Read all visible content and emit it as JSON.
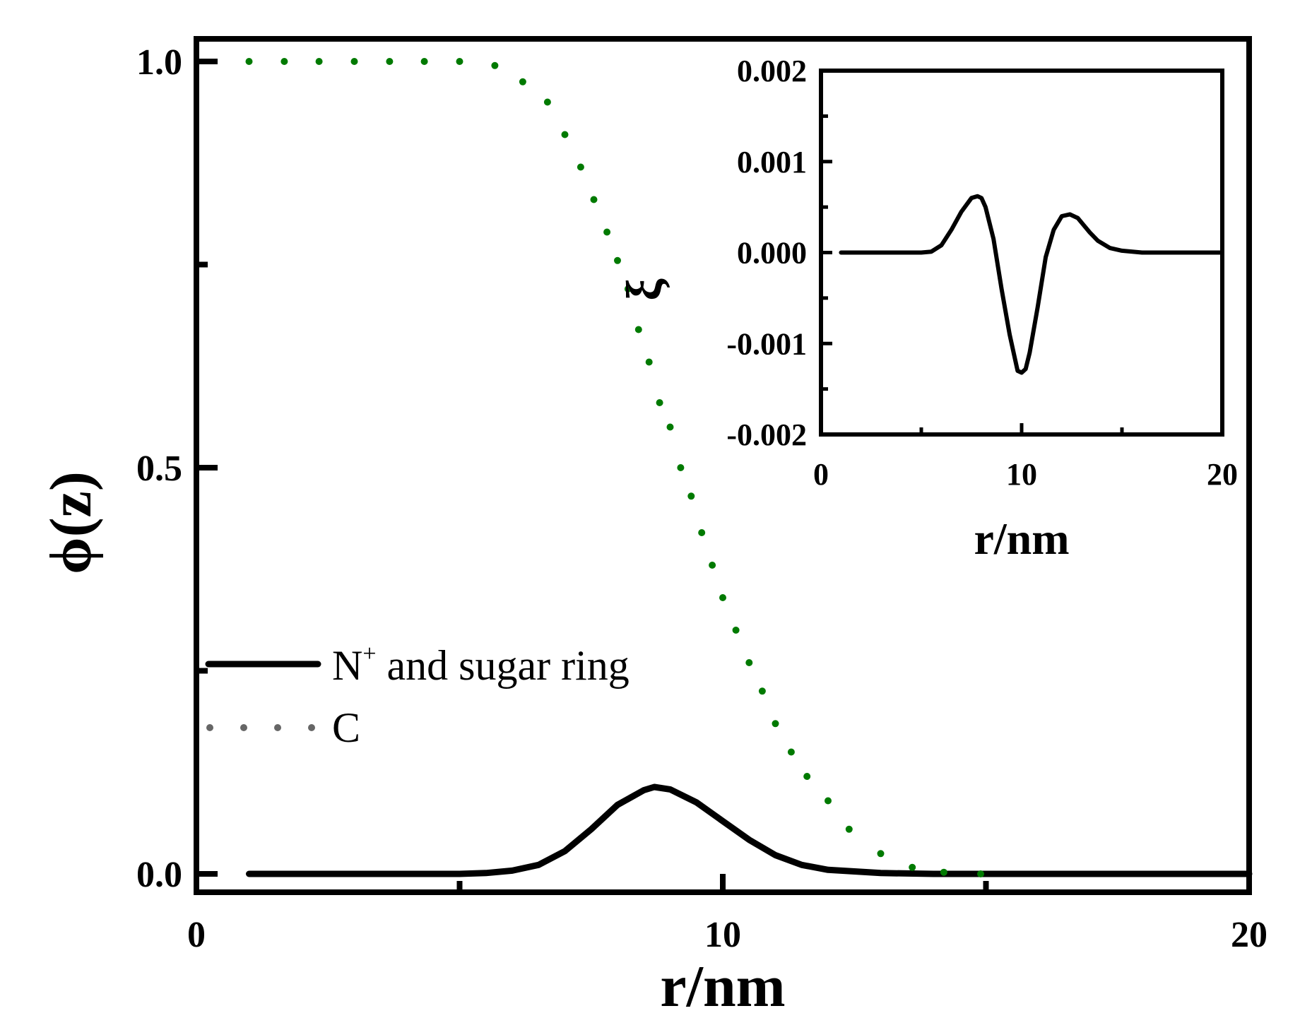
{
  "chart_data": [
    {
      "type": "line",
      "xlabel": "r/nm",
      "ylabel": "ϕ(z)",
      "xlim": [
        0,
        20
      ],
      "ylim": [
        -0.04,
        1.03
      ],
      "x_ticks": [
        0,
        10,
        20
      ],
      "x_tick_labels": [
        "0",
        "10",
        "20"
      ],
      "y_ticks": [
        0.0,
        0.5,
        1.0
      ],
      "y_tick_labels": [
        "0.0",
        "0.5",
        "1.0"
      ],
      "legend": {
        "position": "center-left",
        "entries": [
          {
            "label": "N",
            "superscript": "+",
            "rest": " and sugar ring",
            "style": "solid",
            "color": "#000000"
          },
          {
            "label": "C",
            "superscript": "",
            "rest": "",
            "style": "dotted",
            "color": "#666666"
          }
        ]
      },
      "series": [
        {
          "name": "N+ and sugar ring",
          "style": "solid",
          "color": "#000000",
          "x": [
            1,
            2,
            3,
            4,
            5,
            5.5,
            6,
            6.5,
            7,
            7.5,
            8,
            8.5,
            8.7,
            9,
            9.5,
            10,
            10.5,
            11,
            11.5,
            12,
            13,
            14,
            15,
            16,
            17,
            18,
            19,
            20
          ],
          "y": [
            0,
            0,
            0,
            0,
            0,
            0.001,
            0.004,
            0.011,
            0.028,
            0.055,
            0.085,
            0.103,
            0.107,
            0.104,
            0.088,
            0.065,
            0.042,
            0.023,
            0.011,
            0.005,
            0.001,
            0,
            0,
            0,
            0,
            0,
            0,
            0
          ]
        },
        {
          "name": "C",
          "style": "dotted",
          "color": "#007a00",
          "x": [
            1,
            1.67,
            2.33,
            3,
            3.67,
            4.33,
            5,
            5.67,
            6.2,
            6.67,
            7,
            7.3,
            7.55,
            7.8,
            8.0,
            8.2,
            8.4,
            8.6,
            8.8,
            9.0,
            9.2,
            9.4,
            9.6,
            9.8,
            10.0,
            10.25,
            10.5,
            10.75,
            11.0,
            11.3,
            11.6,
            12.0,
            12.4,
            13.0,
            13.6,
            14.2,
            14.9
          ],
          "y": [
            1.0,
            1.0,
            1.0,
            1.0,
            1.0,
            1.0,
            1.0,
            0.995,
            0.975,
            0.95,
            0.91,
            0.87,
            0.83,
            0.79,
            0.755,
            0.72,
            0.67,
            0.63,
            0.58,
            0.55,
            0.5,
            0.465,
            0.42,
            0.38,
            0.34,
            0.3,
            0.26,
            0.225,
            0.185,
            0.15,
            0.12,
            0.09,
            0.055,
            0.025,
            0.008,
            0.002,
            0
          ]
        }
      ],
      "annotations": [
        {
          "text": "ξ",
          "x": 8.7,
          "y": 0.71
        }
      ]
    },
    {
      "type": "line",
      "role": "inset",
      "xlabel": "r/nm",
      "ylabel": "",
      "xlim": [
        0,
        20
      ],
      "ylim": [
        -0.002,
        0.002
      ],
      "x_ticks": [
        0,
        10,
        20
      ],
      "x_tick_labels": [
        "0",
        "10",
        "20"
      ],
      "y_ticks": [
        -0.002,
        -0.001,
        0.0,
        0.001,
        0.002
      ],
      "y_tick_labels": [
        "-0.002",
        "-0.001",
        "0.000",
        "0.001",
        "0.002"
      ],
      "series": [
        {
          "name": "ξ",
          "style": "solid",
          "color": "#000000",
          "x": [
            1,
            2,
            3,
            4,
            5,
            5.5,
            6,
            6.5,
            7,
            7.5,
            7.8,
            8.0,
            8.2,
            8.6,
            9.0,
            9.4,
            9.8,
            10.0,
            10.2,
            10.4,
            10.8,
            11.2,
            11.6,
            12.0,
            12.4,
            12.8,
            13.1,
            13.4,
            13.8,
            14.4,
            15,
            16,
            17,
            18,
            19,
            20
          ],
          "y": [
            0,
            0,
            0,
            0,
            0,
            1e-05,
            8e-05,
            0.00025,
            0.00045,
            0.0006,
            0.00062,
            0.0006,
            0.0005,
            0.00015,
            -0.0004,
            -0.0009,
            -0.0013,
            -0.00132,
            -0.00128,
            -0.0011,
            -0.0006,
            -5e-05,
            0.00025,
            0.0004,
            0.00042,
            0.00038,
            0.0003,
            0.00022,
            0.00013,
            5e-05,
            2e-05,
            0,
            0,
            0,
            0,
            0
          ]
        }
      ]
    }
  ]
}
